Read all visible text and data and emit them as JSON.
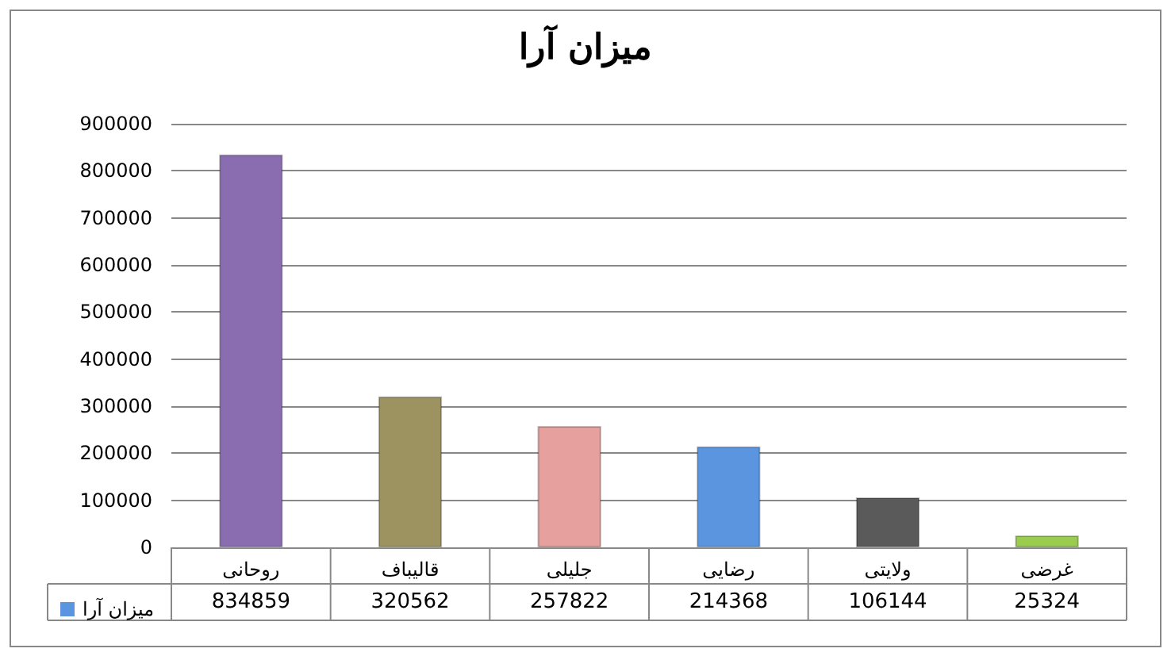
{
  "chart_data": {
    "type": "bar",
    "title": "میزان آرا",
    "categories": [
      "روحانی",
      "قالیباف",
      "جلیلی",
      "رضایی",
      "ولایتی",
      "غرضی"
    ],
    "series": [
      {
        "name": "میزان آرا",
        "color": "#5b95e0",
        "colors": [
          "#8a6db0",
          "#9c9360",
          "#e6a09e",
          "#5b95e0",
          "#5a5a5a",
          "#9acd4e"
        ],
        "values": [
          834859,
          320562,
          257822,
          214368,
          106144,
          25324
        ]
      }
    ],
    "ylim": [
      0,
      900000
    ],
    "yticks": [
      0,
      100000,
      200000,
      300000,
      400000,
      500000,
      600000,
      700000,
      800000,
      900000
    ],
    "grid": "y",
    "legend": "bottom left",
    "data_labels": true
  }
}
